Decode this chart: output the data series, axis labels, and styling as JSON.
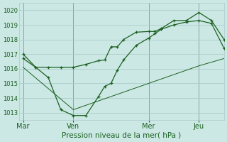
{
  "bg_color": "#cce8e4",
  "grid_color": "#aacccc",
  "line_color": "#1a6020",
  "text_color": "#1a6020",
  "xlabel": "Pression niveau de la mer( hPa )",
  "ylim": [
    1012.5,
    1020.5
  ],
  "yticks": [
    1013,
    1014,
    1015,
    1016,
    1017,
    1018,
    1019,
    1020
  ],
  "xtick_labels": [
    "Mar",
    "Ven",
    "Mer",
    "Jeu"
  ],
  "xtick_positions": [
    0,
    24,
    60,
    84
  ],
  "vline_positions": [
    0,
    24,
    60,
    84
  ],
  "xlim": [
    -2,
    96
  ],
  "series1_x": [
    0,
    6,
    12,
    18,
    24,
    30,
    36,
    39,
    42,
    45,
    48,
    54,
    60,
    63,
    66,
    72,
    78,
    84,
    90,
    96
  ],
  "series1_y": [
    1017.0,
    1016.1,
    1016.1,
    1016.1,
    1016.1,
    1016.3,
    1016.55,
    1016.6,
    1017.5,
    1017.5,
    1018.0,
    1018.5,
    1018.55,
    1018.55,
    1018.75,
    1019.3,
    1019.3,
    1019.85,
    1019.3,
    1018.0
  ],
  "series2_x": [
    0,
    6,
    12,
    18,
    24,
    30,
    36,
    39,
    42,
    45,
    48,
    54,
    60,
    63,
    66,
    72,
    78,
    84,
    90,
    96
  ],
  "series2_y": [
    1016.7,
    1016.1,
    1015.4,
    1013.2,
    1012.8,
    1012.8,
    1014.1,
    1014.8,
    1015.0,
    1015.9,
    1016.6,
    1017.6,
    1018.1,
    1018.4,
    1018.7,
    1019.0,
    1019.2,
    1019.3,
    1019.1,
    1017.4
  ],
  "series3_x": [
    0,
    24,
    60,
    84,
    96
  ],
  "series3_y": [
    1016.1,
    1013.2,
    1015.0,
    1016.2,
    1016.7
  ]
}
